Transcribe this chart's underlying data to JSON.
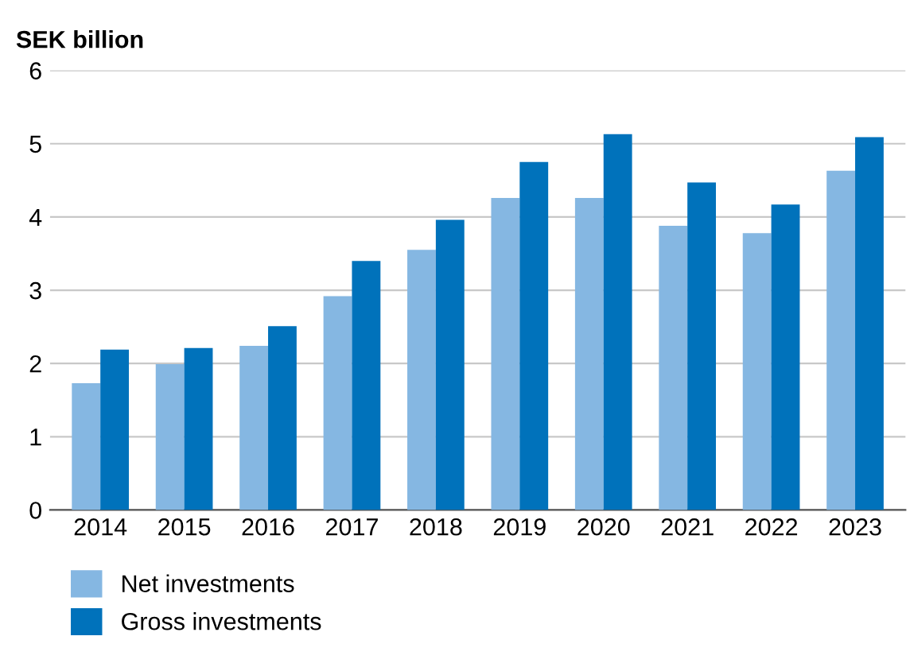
{
  "chart_data": {
    "type": "bar",
    "ylabel": "SEK billion",
    "categories": [
      "2014",
      "2015",
      "2016",
      "2017",
      "2018",
      "2019",
      "2020",
      "2021",
      "2022",
      "2023"
    ],
    "series": [
      {
        "name": "Net investments",
        "color": "#85b7e2",
        "values": [
          1.73,
          1.99,
          2.24,
          2.92,
          3.55,
          4.26,
          4.26,
          3.88,
          3.78,
          4.63
        ]
      },
      {
        "name": "Gross investments",
        "color": "#0072bb",
        "values": [
          2.19,
          2.21,
          2.51,
          3.4,
          3.96,
          4.75,
          5.13,
          4.47,
          4.17,
          5.09
        ]
      }
    ],
    "ylim": [
      0,
      6
    ],
    "yticks": [
      0,
      1,
      2,
      3,
      4,
      5,
      6
    ],
    "grid": "y",
    "legend": "bottom left"
  }
}
